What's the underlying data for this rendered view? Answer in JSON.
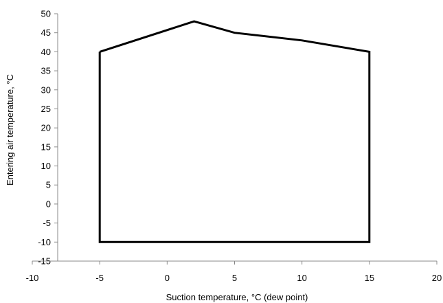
{
  "chart_data": {
    "type": "line",
    "xlabel": "Suction temperature, °C (dew point)",
    "ylabel": "Entering air temperature, °C",
    "xlim": [
      -10,
      20
    ],
    "ylim": [
      -15,
      50
    ],
    "x_ticks": [
      -10,
      -5,
      0,
      5,
      10,
      15,
      20
    ],
    "y_ticks": [
      -15,
      -10,
      -5,
      0,
      5,
      10,
      15,
      20,
      25,
      30,
      35,
      40,
      45,
      50
    ],
    "grid": false,
    "legend": "none",
    "line_color": "#000000",
    "series": [
      {
        "x": [
          -5,
          2,
          5,
          10,
          15,
          15,
          -5,
          -5
        ],
        "y": [
          40,
          48,
          45,
          43,
          40,
          -10,
          -10,
          40
        ]
      }
    ]
  }
}
